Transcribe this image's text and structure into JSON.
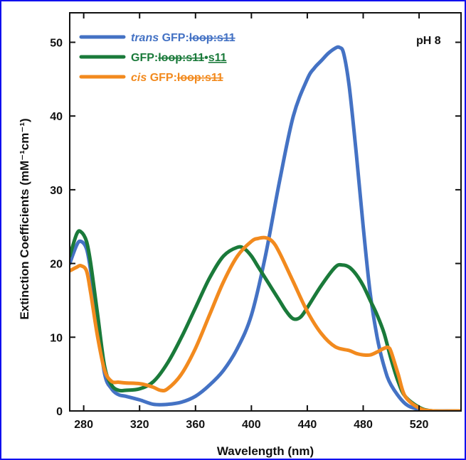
{
  "chart_data": {
    "type": "line",
    "title": "",
    "xlabel": "Wavelength (nm)",
    "ylabel": "Extinction Coefficients (mM⁻¹cm⁻¹)",
    "xlim": [
      270,
      550
    ],
    "ylim": [
      0,
      54
    ],
    "xticks": [
      280,
      320,
      360,
      400,
      440,
      480,
      520
    ],
    "yticks": [
      0,
      10,
      20,
      30,
      40,
      50
    ],
    "grid": false,
    "legend_position": "top-left",
    "annotation": "pH 8",
    "series": [
      {
        "name": "trans GFP:loop:s11",
        "legend": {
          "italic": "trans",
          "plain": "GFP:",
          "strike": "loop:s11",
          "underline": ""
        },
        "color": "#4472c4",
        "x": [
          270,
          275,
          278,
          282,
          285,
          290,
          295,
          300,
          305,
          310,
          320,
          330,
          340,
          350,
          360,
          370,
          380,
          390,
          400,
          410,
          420,
          430,
          440,
          445,
          450,
          455,
          460,
          463,
          466,
          470,
          475,
          480,
          485,
          490,
          495,
          500,
          510,
          520,
          530,
          540,
          550
        ],
        "y": [
          20,
          22.5,
          23,
          22,
          19,
          12,
          5,
          3,
          2.2,
          2,
          1.5,
          0.9,
          0.9,
          1.2,
          2,
          3.5,
          5.5,
          8.5,
          13,
          21,
          31,
          40,
          45,
          46.5,
          47.5,
          48.5,
          49.2,
          49.3,
          48.5,
          44,
          35,
          25,
          16,
          10,
          6,
          3.5,
          1,
          0.2,
          0,
          0,
          0
        ]
      },
      {
        "name": "GFP:loop:s11•s11",
        "legend": {
          "italic": "",
          "plain": "GFP:",
          "strike": "loop:s11",
          "underline": "s11"
        },
        "color": "#1a7a3a",
        "x": [
          270,
          275,
          278,
          282,
          285,
          290,
          295,
          300,
          305,
          310,
          320,
          330,
          340,
          350,
          360,
          370,
          380,
          390,
          395,
          400,
          405,
          410,
          415,
          420,
          425,
          430,
          435,
          440,
          450,
          460,
          465,
          470,
          475,
          480,
          485,
          490,
          495,
          500,
          505,
          510,
          520,
          530,
          550
        ],
        "y": [
          21,
          24,
          24.3,
          23,
          20,
          13,
          6,
          3.5,
          2.8,
          2.8,
          3,
          4,
          6.5,
          10,
          14,
          18,
          21,
          22.2,
          22,
          21,
          19.5,
          18,
          16.5,
          15,
          13.5,
          12.5,
          12.7,
          14,
          17,
          19.5,
          19.8,
          19.5,
          18.5,
          17,
          15,
          13,
          10.5,
          7,
          4,
          2,
          0.5,
          0,
          0
        ]
      },
      {
        "name": "cis GFP:loop:s11",
        "legend": {
          "italic": "cis",
          "plain": "GFP:",
          "strike": "loop:s11",
          "underline": ""
        },
        "color": "#f28a1e",
        "x": [
          270,
          275,
          278,
          282,
          285,
          290,
          295,
          300,
          305,
          310,
          320,
          325,
          330,
          335,
          340,
          350,
          360,
          370,
          380,
          390,
          400,
          405,
          410,
          415,
          420,
          430,
          440,
          450,
          460,
          470,
          475,
          480,
          485,
          490,
          495,
          498,
          500,
          505,
          510,
          520,
          530,
          550
        ],
        "y": [
          19,
          19.5,
          19.7,
          19,
          16,
          10,
          5.5,
          4,
          3.9,
          3.8,
          3.7,
          3.5,
          3.2,
          2.8,
          3,
          5,
          8.5,
          13,
          17.5,
          21,
          23,
          23.4,
          23.5,
          23,
          21.5,
          17.5,
          13.5,
          10.5,
          8.7,
          8.2,
          7.8,
          7.6,
          7.6,
          8,
          8.5,
          8.6,
          8,
          5,
          2,
          0.4,
          0,
          0
        ]
      }
    ]
  }
}
